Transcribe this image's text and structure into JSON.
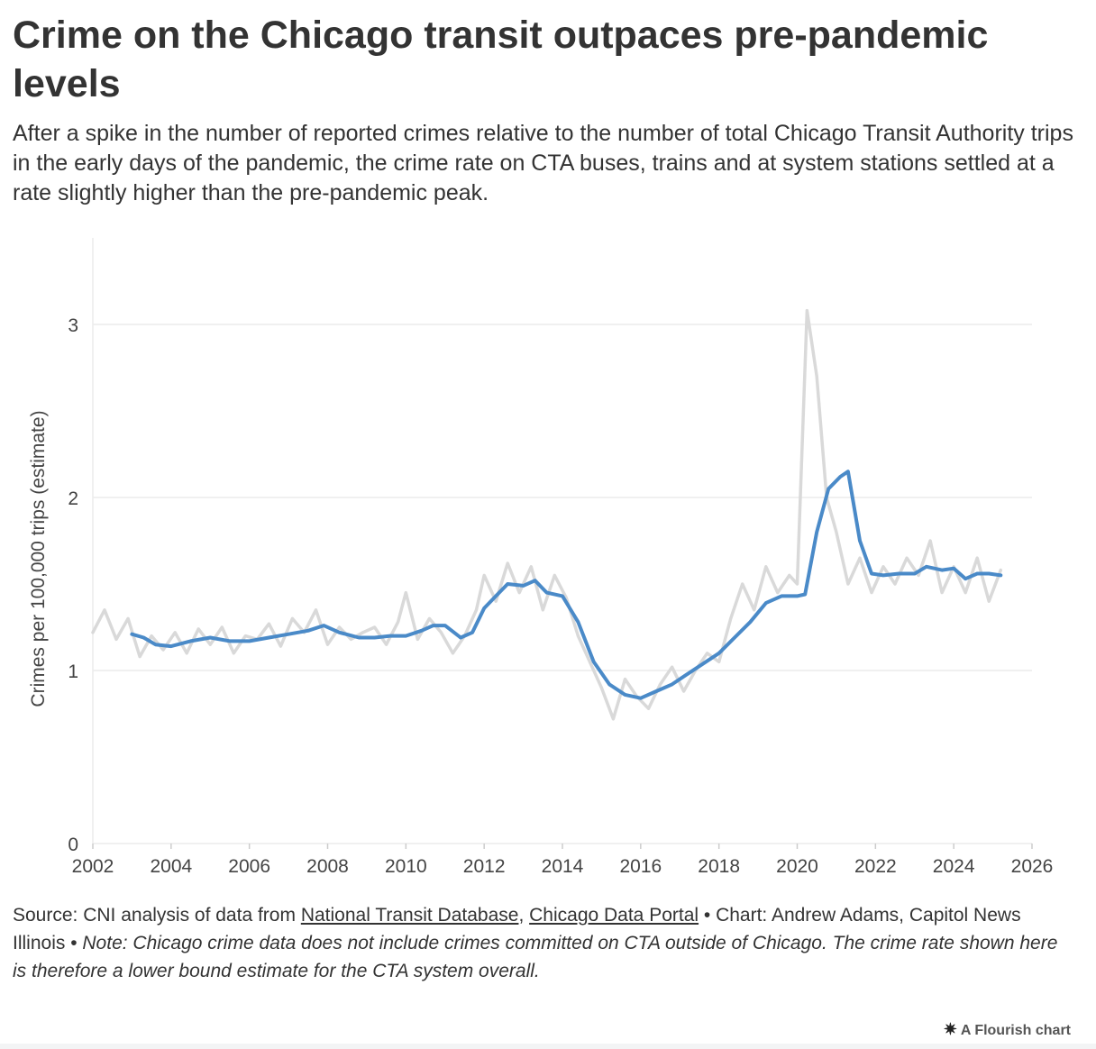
{
  "title": "Crime on the Chicago transit outpaces pre-pandemic levels",
  "subtitle": "After a spike in the number of reported crimes relative to the number of total Chicago Transit Authority trips in the early days of the pandemic, the crime rate on CTA buses, trains and at system stations settled at a rate slightly higher than the pre-pandemic peak.",
  "footer": {
    "source_prefix": "Source: CNI analysis of data from ",
    "link1": "National Transit Database",
    "comma": ", ",
    "link2": "Chicago Data Portal",
    "credit": " • Chart: Andrew Adams, Capitol News Illinois • ",
    "note": "Note: Chicago crime data does not include crimes committed on CTA outside of Chicago. The crime rate shown here is therefore a lower bound estimate for the CTA system overall."
  },
  "brand": {
    "label": "A Flourish chart",
    "icon": "flourish-logo-icon"
  },
  "colors": {
    "raw_series": "#d9d9d9",
    "smoothed_series": "#4a8ac8",
    "grid": "#ececec",
    "axis_text": "#444444"
  },
  "chart_data": {
    "type": "line",
    "title": "Crime on the Chicago transit outpaces pre-pandemic levels",
    "xlabel": "",
    "ylabel": "Crimes per 100,000 trips (estimate)",
    "xlim": [
      2002,
      2026
    ],
    "ylim": [
      0,
      3.5
    ],
    "x_ticks": [
      "2002",
      "2004",
      "2006",
      "2008",
      "2010",
      "2012",
      "2014",
      "2016",
      "2018",
      "2020",
      "2022",
      "2024",
      "2026"
    ],
    "y_ticks": [
      "0",
      "1",
      "2",
      "3"
    ],
    "grid": true,
    "series": [
      {
        "role": "monthly",
        "x": [
          2002.0,
          2002.3,
          2002.6,
          2002.9,
          2003.2,
          2003.5,
          2003.8,
          2004.1,
          2004.4,
          2004.7,
          2005.0,
          2005.3,
          2005.6,
          2005.9,
          2006.2,
          2006.5,
          2006.8,
          2007.1,
          2007.4,
          2007.7,
          2008.0,
          2008.3,
          2008.6,
          2008.9,
          2009.2,
          2009.5,
          2009.8,
          2010.0,
          2010.3,
          2010.6,
          2010.9,
          2011.2,
          2011.5,
          2011.8,
          2012.0,
          2012.3,
          2012.6,
          2012.9,
          2013.2,
          2013.5,
          2013.8,
          2014.1,
          2014.4,
          2014.7,
          2015.0,
          2015.3,
          2015.6,
          2015.9,
          2016.2,
          2016.5,
          2016.8,
          2017.1,
          2017.4,
          2017.7,
          2018.0,
          2018.3,
          2018.6,
          2018.9,
          2019.2,
          2019.5,
          2019.8,
          2020.0,
          2020.25,
          2020.5,
          2020.75,
          2021.0,
          2021.3,
          2021.6,
          2021.9,
          2022.2,
          2022.5,
          2022.8,
          2023.1,
          2023.4,
          2023.7,
          2024.0,
          2024.3,
          2024.6,
          2024.9,
          2025.2
        ],
        "y": [
          1.22,
          1.35,
          1.18,
          1.3,
          1.08,
          1.2,
          1.12,
          1.22,
          1.1,
          1.24,
          1.15,
          1.25,
          1.1,
          1.2,
          1.18,
          1.27,
          1.14,
          1.3,
          1.22,
          1.35,
          1.15,
          1.25,
          1.18,
          1.22,
          1.25,
          1.15,
          1.28,
          1.45,
          1.18,
          1.3,
          1.22,
          1.1,
          1.2,
          1.35,
          1.55,
          1.4,
          1.62,
          1.45,
          1.6,
          1.35,
          1.55,
          1.42,
          1.2,
          1.05,
          0.9,
          0.72,
          0.95,
          0.85,
          0.78,
          0.92,
          1.02,
          0.88,
          1.0,
          1.1,
          1.05,
          1.3,
          1.5,
          1.35,
          1.6,
          1.45,
          1.55,
          1.5,
          3.08,
          2.7,
          2.0,
          1.8,
          1.5,
          1.65,
          1.45,
          1.6,
          1.5,
          1.65,
          1.55,
          1.75,
          1.45,
          1.6,
          1.45,
          1.65,
          1.4,
          1.58
        ]
      },
      {
        "role": "rolling-average",
        "x": [
          2003.0,
          2003.3,
          2003.6,
          2004.0,
          2004.5,
          2005.0,
          2005.5,
          2006.0,
          2006.5,
          2007.0,
          2007.5,
          2007.9,
          2008.3,
          2008.8,
          2009.2,
          2009.6,
          2010.0,
          2010.4,
          2010.7,
          2011.0,
          2011.4,
          2011.7,
          2012.0,
          2012.3,
          2012.6,
          2013.0,
          2013.3,
          2013.6,
          2014.0,
          2014.4,
          2014.8,
          2015.2,
          2015.6,
          2016.0,
          2016.4,
          2016.8,
          2017.2,
          2017.6,
          2018.0,
          2018.4,
          2018.8,
          2019.2,
          2019.6,
          2020.0,
          2020.2,
          2020.5,
          2020.8,
          2021.1,
          2021.3,
          2021.6,
          2021.9,
          2022.2,
          2022.6,
          2023.0,
          2023.3,
          2023.7,
          2024.0,
          2024.3,
          2024.6,
          2024.9,
          2025.2
        ],
        "y": [
          1.21,
          1.19,
          1.15,
          1.14,
          1.17,
          1.19,
          1.17,
          1.17,
          1.19,
          1.21,
          1.23,
          1.26,
          1.22,
          1.19,
          1.19,
          1.2,
          1.2,
          1.23,
          1.26,
          1.26,
          1.19,
          1.22,
          1.36,
          1.43,
          1.5,
          1.49,
          1.52,
          1.45,
          1.43,
          1.28,
          1.05,
          0.92,
          0.86,
          0.84,
          0.88,
          0.92,
          0.98,
          1.04,
          1.1,
          1.19,
          1.28,
          1.39,
          1.43,
          1.43,
          1.44,
          1.8,
          2.05,
          2.12,
          2.15,
          1.75,
          1.56,
          1.55,
          1.56,
          1.56,
          1.6,
          1.58,
          1.59,
          1.53,
          1.56,
          1.56,
          1.55
        ]
      }
    ]
  }
}
